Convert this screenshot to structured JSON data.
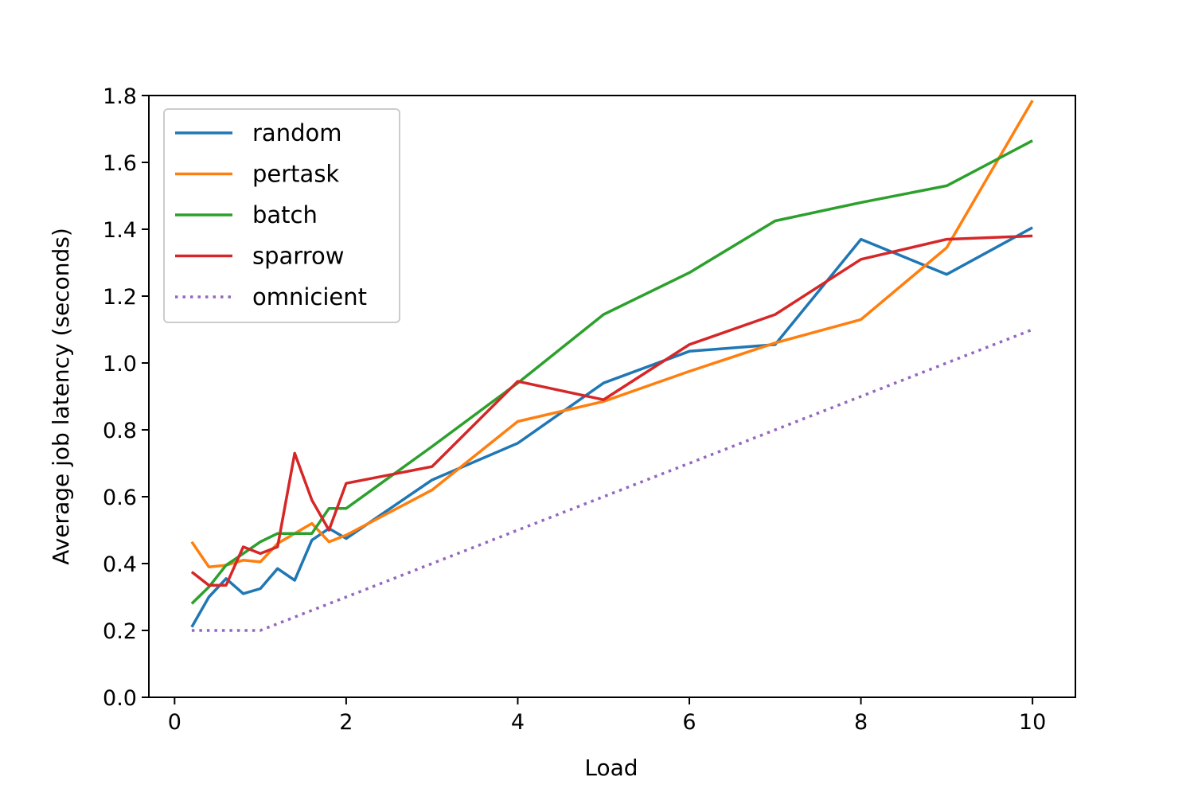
{
  "chart_data": {
    "type": "line",
    "title": "",
    "xlabel": "Load",
    "ylabel": "Average job latency (seconds)",
    "xlim": [
      -0.3,
      10.5
    ],
    "ylim": [
      0.0,
      1.8
    ],
    "xticks": [
      0,
      2,
      4,
      6,
      8,
      10
    ],
    "yticks": [
      0.0,
      0.2,
      0.4,
      0.6,
      0.8,
      1.0,
      1.2,
      1.4,
      1.6,
      1.8
    ],
    "legend": "top-left",
    "grid": false,
    "series": [
      {
        "name": "random",
        "color": "#1f77b4",
        "style": "solid",
        "x": [
          0.2,
          0.4,
          0.6,
          0.8,
          1.0,
          1.2,
          1.4,
          1.6,
          1.8,
          2.0,
          3.0,
          4.0,
          5.0,
          6.0,
          7.0,
          8.0,
          9.0,
          10.0
        ],
        "y": [
          0.21,
          0.3,
          0.355,
          0.31,
          0.325,
          0.385,
          0.35,
          0.47,
          0.505,
          0.475,
          0.65,
          0.76,
          0.94,
          1.035,
          1.055,
          1.37,
          1.265,
          1.405
        ]
      },
      {
        "name": "pertask",
        "color": "#ff7f0e",
        "style": "solid",
        "x": [
          0.2,
          0.4,
          0.6,
          0.8,
          1.0,
          1.2,
          1.4,
          1.6,
          1.8,
          2.0,
          3.0,
          4.0,
          5.0,
          6.0,
          7.0,
          8.0,
          9.0,
          10.0
        ],
        "y": [
          0.465,
          0.39,
          0.395,
          0.41,
          0.405,
          0.46,
          0.49,
          0.52,
          0.465,
          0.485,
          0.62,
          0.825,
          0.885,
          0.975,
          1.06,
          1.13,
          1.345,
          1.785
        ]
      },
      {
        "name": "batch",
        "color": "#2ca02c",
        "style": "solid",
        "x": [
          0.2,
          0.4,
          0.6,
          0.8,
          1.0,
          1.2,
          1.4,
          1.6,
          1.8,
          2.0,
          3.0,
          4.0,
          5.0,
          6.0,
          7.0,
          8.0,
          9.0,
          10.0
        ],
        "y": [
          0.28,
          0.33,
          0.395,
          0.43,
          0.465,
          0.49,
          0.49,
          0.49,
          0.565,
          0.565,
          0.75,
          0.94,
          1.145,
          1.27,
          1.425,
          1.48,
          1.53,
          1.665
        ]
      },
      {
        "name": "sparrow",
        "color": "#d62728",
        "style": "solid",
        "x": [
          0.2,
          0.4,
          0.6,
          0.8,
          1.0,
          1.2,
          1.4,
          1.6,
          1.8,
          2.0,
          3.0,
          4.0,
          5.0,
          6.0,
          7.0,
          8.0,
          9.0,
          10.0
        ],
        "y": [
          0.375,
          0.335,
          0.335,
          0.45,
          0.43,
          0.45,
          0.73,
          0.59,
          0.5,
          0.64,
          0.69,
          0.945,
          0.89,
          1.055,
          1.145,
          1.31,
          1.37,
          1.38
        ]
      },
      {
        "name": "omnicient",
        "color": "#9467bd",
        "style": "dotted",
        "x": [
          0.2,
          0.4,
          0.6,
          0.8,
          1.0,
          2.0,
          3.0,
          4.0,
          5.0,
          6.0,
          7.0,
          8.0,
          9.0,
          10.0
        ],
        "y": [
          0.2,
          0.2,
          0.2,
          0.2,
          0.2,
          0.3,
          0.4,
          0.5,
          0.6,
          0.7,
          0.8,
          0.9,
          1.0,
          1.1
        ]
      }
    ]
  }
}
